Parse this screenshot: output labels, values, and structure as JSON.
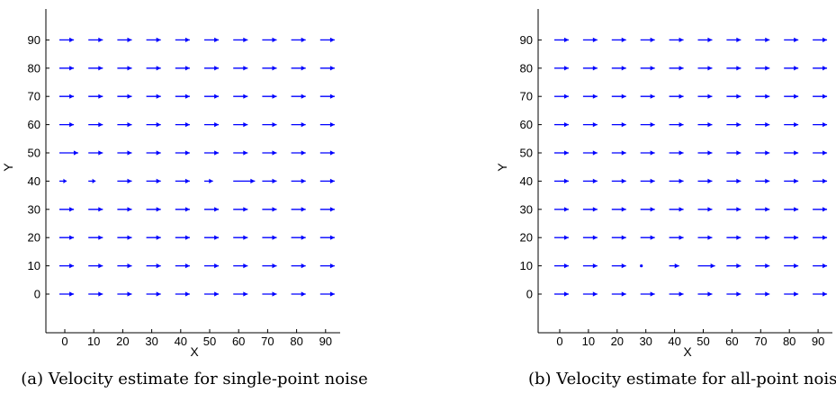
{
  "chart_data": [
    {
      "type": "quiver",
      "caption": "(a) Velocity estimate for single-point noise",
      "xlabel": "X",
      "ylabel": "Y",
      "xlim": [
        -12,
        102
      ],
      "ylim": [
        -18,
        102
      ],
      "xticks": [
        0,
        10,
        20,
        30,
        40,
        50,
        60,
        70,
        80,
        90
      ],
      "yticks": [
        0,
        10,
        20,
        30,
        40,
        50,
        60,
        70,
        80,
        90
      ],
      "grid_x": [
        0,
        10,
        20,
        30,
        40,
        50,
        60,
        70,
        80,
        90
      ],
      "grid_y": [
        0,
        10,
        20,
        30,
        40,
        50,
        60,
        70,
        80,
        90
      ],
      "arrow_color": "#0000ff",
      "default_vector": [
        5.0,
        0
      ],
      "vector_exceptions": [
        {
          "x": 0,
          "y": 40,
          "u": 2.5,
          "v": 0
        },
        {
          "x": 10,
          "y": 40,
          "u": 2.5,
          "v": 0
        },
        {
          "x": 50,
          "y": 40,
          "u": 3.0,
          "v": 0
        },
        {
          "x": 60,
          "y": 40,
          "u": 7.5,
          "v": 0
        },
        {
          "x": 0,
          "y": 50,
          "u": 6.5,
          "v": 0
        }
      ]
    },
    {
      "type": "quiver",
      "caption": "(b) Velocity estimate for all-point noise",
      "xlabel": "X",
      "ylabel": "Y",
      "xlim": [
        -12,
        102
      ],
      "ylim": [
        -18,
        102
      ],
      "xticks": [
        0,
        10,
        20,
        30,
        40,
        50,
        60,
        70,
        80,
        90
      ],
      "yticks": [
        0,
        10,
        20,
        30,
        40,
        50,
        60,
        70,
        80,
        90
      ],
      "grid_x": [
        0,
        10,
        20,
        30,
        40,
        50,
        60,
        70,
        80,
        90
      ],
      "grid_y": [
        0,
        10,
        20,
        30,
        40,
        50,
        60,
        70,
        80,
        90
      ],
      "arrow_color": "#0000ff",
      "default_vector": [
        5.0,
        0
      ],
      "vector_exceptions": [
        {
          "x": 30,
          "y": 10,
          "u": 0.3,
          "v": 0
        },
        {
          "x": 40,
          "y": 10,
          "u": 3.5,
          "v": 0
        },
        {
          "x": 50,
          "y": 10,
          "u": 6.0,
          "v": 0
        }
      ]
    }
  ]
}
